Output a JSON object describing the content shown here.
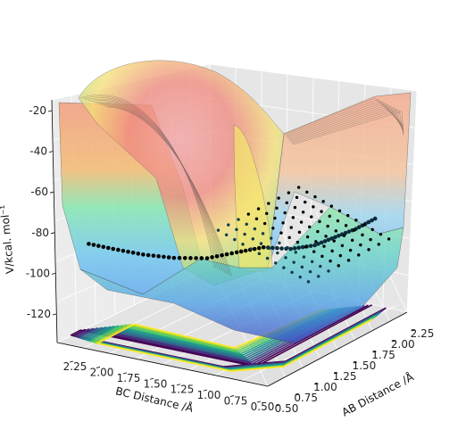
{
  "chart_data": {
    "type": "surface3d",
    "title": "",
    "xlabel": "AB Distance /Å",
    "ylabel": "BC Distance /Å",
    "zlabel": "V/kcal. mol⁻¹",
    "x_ticks": [
      "0.50",
      "0.75",
      "1.00",
      "1.25",
      "1.50",
      "1.75",
      "2.00",
      "2.25"
    ],
    "y_ticks": [
      "2.25",
      "2.00",
      "1.75",
      "1.50",
      "1.25",
      "1.00",
      "0.75",
      "0.50"
    ],
    "z_ticks": [
      "-20",
      "-40",
      "-60",
      "-80",
      "-100",
      "-120"
    ],
    "xlim": [
      0.5,
      2.3
    ],
    "ylim": [
      0.5,
      2.3
    ],
    "zlim": [
      -135,
      -18
    ],
    "grid": true,
    "surface_colormap": "rainbow",
    "contour_colormap": "viridis",
    "trajectory": [
      {
        "ab": 2.25,
        "bc": 0.74,
        "v": -106
      },
      {
        "ab": 2.0,
        "bc": 0.74,
        "v": -106
      },
      {
        "ab": 1.75,
        "bc": 0.75,
        "v": -105
      },
      {
        "ab": 1.5,
        "bc": 0.76,
        "v": -104
      },
      {
        "ab": 1.25,
        "bc": 0.8,
        "v": -101
      },
      {
        "ab": 1.05,
        "bc": 0.9,
        "v": -97
      },
      {
        "ab": 0.93,
        "bc": 1.05,
        "v": -99
      },
      {
        "ab": 0.85,
        "bc": 1.25,
        "v": -103
      },
      {
        "ab": 0.8,
        "bc": 1.5,
        "v": -105
      },
      {
        "ab": 0.78,
        "bc": 1.75,
        "v": -106
      },
      {
        "ab": 0.77,
        "bc": 2.0,
        "v": -106
      },
      {
        "ab": 0.77,
        "bc": 2.25,
        "v": -106
      }
    ]
  }
}
